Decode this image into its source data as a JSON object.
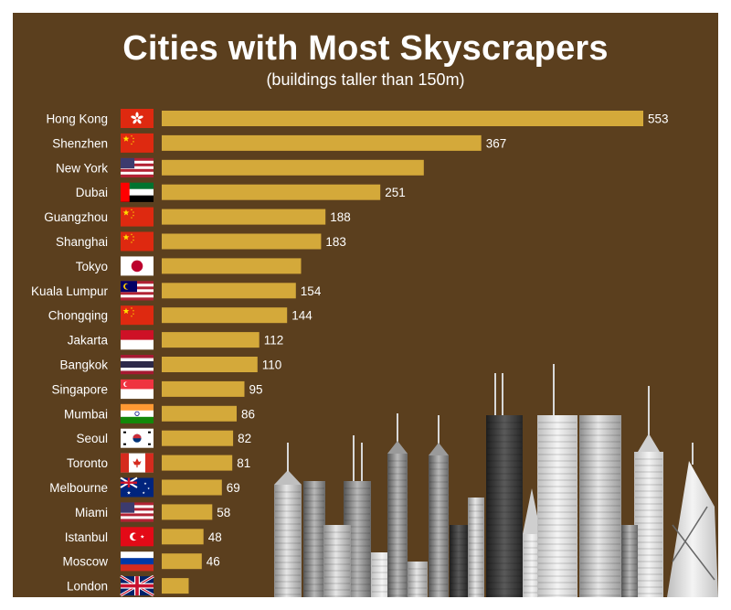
{
  "chart_data": {
    "type": "bar",
    "orientation": "horizontal",
    "title": "Cities with Most Skyscrapers",
    "subtitle": "(buildings taller than 150m)",
    "categories": [
      "Hong Kong",
      "Shenzhen",
      "New York",
      "Dubai",
      "Guangzhou",
      "Shanghai",
      "Tokyo",
      "Kuala Lumpur",
      "Chongqing",
      "Jakarta",
      "Bangkok",
      "Singapore",
      "Mumbai",
      "Seoul",
      "Toronto",
      "Melbourne",
      "Miami",
      "Istanbul",
      "Moscow",
      "London"
    ],
    "values": [
      553,
      367,
      301,
      251,
      188,
      183,
      160,
      154,
      144,
      112,
      110,
      95,
      86,
      82,
      81,
      69,
      58,
      48,
      46,
      31
    ],
    "value_labels": [
      "553",
      "367",
      "",
      "251",
      "188",
      "183",
      "",
      "154",
      "144",
      "112",
      "110",
      "95",
      "86",
      "82",
      "81",
      "69",
      "58",
      "48",
      "46",
      ""
    ],
    "flags": [
      "hong-kong-flag-icon",
      "china-flag-icon",
      "usa-flag-icon",
      "uae-flag-icon",
      "china-flag-icon",
      "china-flag-icon",
      "japan-flag-icon",
      "malaysia-flag-icon",
      "china-flag-icon",
      "indonesia-flag-icon",
      "thailand-flag-icon",
      "singapore-flag-icon",
      "india-flag-icon",
      "south-korea-flag-icon",
      "canada-flag-icon",
      "australia-flag-icon",
      "usa-flag-icon",
      "turkey-flag-icon",
      "russia-flag-icon",
      "uk-flag-icon"
    ],
    "xlim": [
      0,
      553
    ],
    "grid": false,
    "legend": "none",
    "colors": {
      "background": "#5b3f1e",
      "bar": "#d4a93a",
      "text": "#ffffff"
    }
  },
  "decoration": {
    "skyline_icon": "skyscraper-skyline-icon"
  }
}
